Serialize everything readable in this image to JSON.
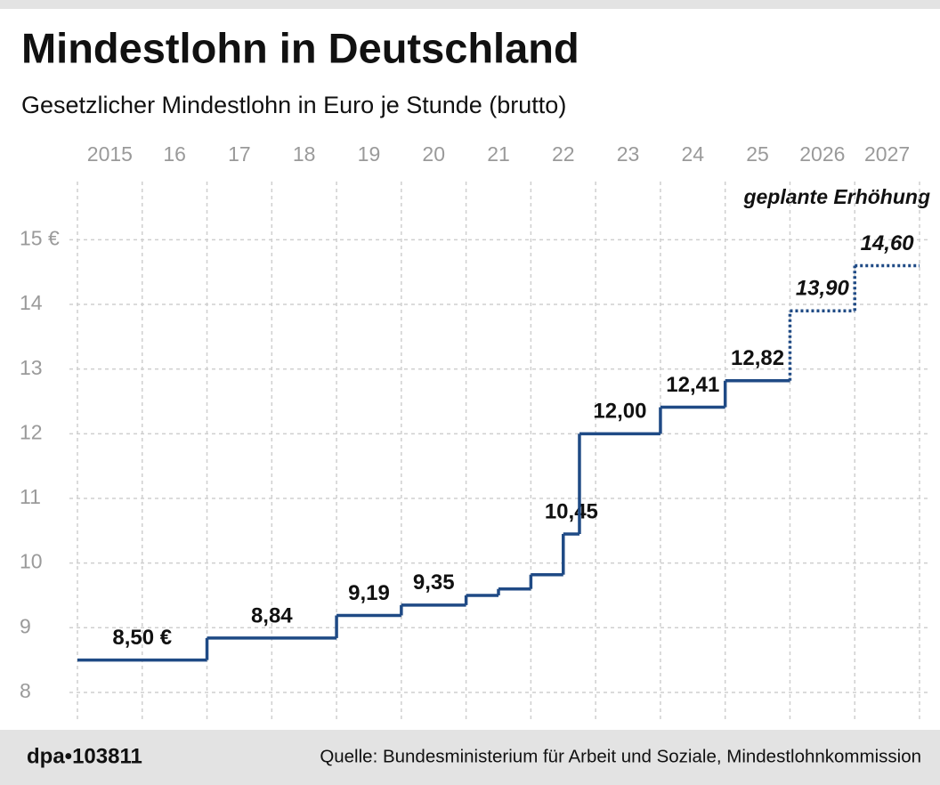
{
  "chart_data": {
    "type": "step",
    "title": "Mindestlohn in Deutschland",
    "subtitle": "Gesetzlicher Mindestlohn in Euro je Stunde (brutto)",
    "annotation": "geplante Erhöhung",
    "source": "Quelle: Bundesministerium für Arbeit und Soziale, Mindestlohnkommission",
    "credit": "dpa•103811",
    "x": [
      2015,
      2017,
      2019,
      2020,
      2021,
      2021.5,
      2022,
      2022.5,
      2022.75,
      2024,
      2025,
      2026,
      2027
    ],
    "values": [
      8.5,
      8.84,
      9.19,
      9.35,
      9.5,
      9.6,
      9.82,
      10.45,
      12,
      12.41,
      12.82,
      13.9,
      14.6
    ],
    "value_labels": [
      "8,50 €",
      "8,84",
      "9,19",
      "9,35",
      null,
      null,
      null,
      "10,45",
      "12,00",
      "12,41",
      "12,82",
      "13,90",
      "14,60"
    ],
    "line_style": [
      "solid",
      "solid",
      "solid",
      "solid",
      "solid",
      "solid",
      "solid",
      "solid",
      "solid",
      "solid",
      "solid",
      "dotted",
      "dotted"
    ],
    "color": "#1f4a85",
    "xlim": [
      2015,
      2028
    ],
    "xticks": [
      {
        "value": 2015,
        "label": "2015"
      },
      {
        "value": 2016,
        "label": "16"
      },
      {
        "value": 2017,
        "label": "17"
      },
      {
        "value": 2018,
        "label": "18"
      },
      {
        "value": 2019,
        "label": "19"
      },
      {
        "value": 2020,
        "label": "20"
      },
      {
        "value": 2021,
        "label": "21"
      },
      {
        "value": 2022,
        "label": "22"
      },
      {
        "value": 2023,
        "label": "23"
      },
      {
        "value": 2024,
        "label": "24"
      },
      {
        "value": 2025,
        "label": "25"
      },
      {
        "value": 2026,
        "label": "2026"
      },
      {
        "value": 2027,
        "label": "2027"
      }
    ],
    "ylim": [
      7.6,
      15.9
    ],
    "yticks": [
      8,
      9,
      10,
      11,
      12,
      13,
      14,
      {
        "value": 15,
        "label": "15 €"
      }
    ],
    "grid": true
  }
}
